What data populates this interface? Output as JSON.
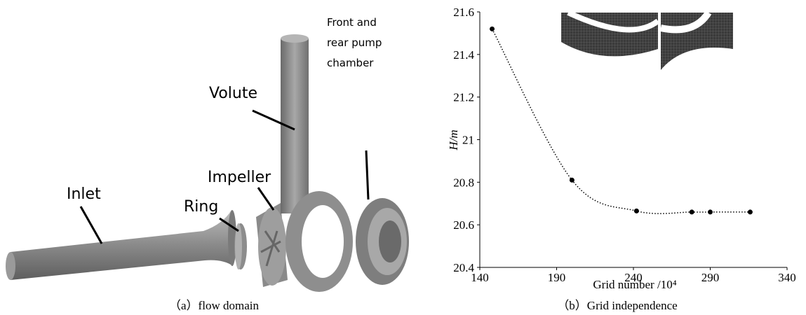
{
  "figure_a": {
    "labels": [
      "Volute",
      "Front and",
      "rear pump",
      "chamber",
      "Impeller",
      "Ring",
      "Inlet"
    ],
    "caption": "（a）flow domain"
  },
  "chart_data": {
    "type": "line",
    "caption": "（b）Grid independence",
    "x_label": "Grid number /10⁴",
    "y_label": "H/m",
    "x": [
      148,
      200,
      242,
      278,
      290,
      316
    ],
    "series": [
      {
        "name": "H",
        "color": "#000000",
        "values": [
          21.52,
          20.81,
          20.665,
          20.66,
          20.66,
          20.66
        ]
      }
    ],
    "xlim": [
      140,
      340
    ],
    "xticks": [
      140,
      190,
      240,
      290,
      340
    ],
    "ylim": [
      20.4,
      21.6
    ],
    "yticks": [
      20.4,
      20.6,
      20.8,
      21,
      21.2,
      21.4,
      21.6
    ],
    "line_style": "dotted",
    "markers": true,
    "grid": false
  }
}
